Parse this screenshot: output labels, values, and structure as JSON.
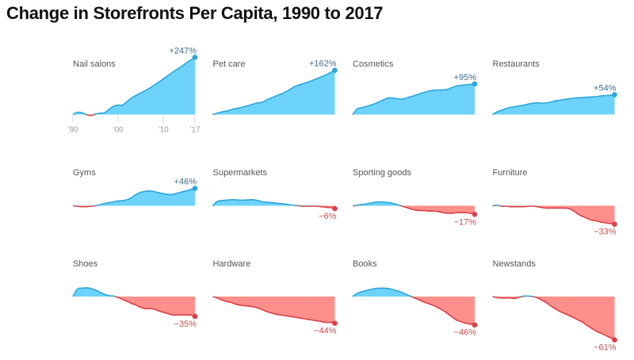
{
  "chart_data": {
    "type": "area",
    "layout": "small-multiples",
    "title": "Change in Storefronts Per Capita, 1990 to 2017",
    "xlabel": "",
    "ylabel": "",
    "y_scale": "log",
    "grid": false,
    "legend": "none",
    "years": [
      1990,
      1991,
      1992,
      1993,
      1994,
      1995,
      1996,
      1997,
      1998,
      1999,
      2000,
      2001,
      2002,
      2003,
      2004,
      2005,
      2006,
      2007,
      2008,
      2009,
      2010,
      2011,
      2012,
      2013,
      2014,
      2015,
      2016,
      2017
    ],
    "x_ticks": [
      {
        "year": 1990,
        "label": "’90"
      },
      {
        "year": 2000,
        "label": "’00"
      },
      {
        "year": 2010,
        "label": "’10"
      },
      {
        "year": 2017,
        "label": "’17"
      }
    ],
    "colors": {
      "positive_fill": "#6dd3fb",
      "positive_line": "#2ba6d9",
      "negative_fill": "#ff8f8a",
      "negative_line": "#d8414a",
      "positive_text": "#3e6e8e",
      "negative_text": "#c4504f",
      "tick": "#d6d6d6"
    },
    "panels": [
      {
        "label": "Nail salons",
        "change_pct": 247,
        "change_label": "+247%",
        "values": [
          0,
          5,
          4,
          0,
          -2,
          1,
          3,
          4,
          12,
          20,
          23,
          23,
          33,
          44,
          52,
          60,
          68,
          78,
          90,
          103,
          117,
          133,
          150,
          167,
          185,
          205,
          226,
          247
        ]
      },
      {
        "label": "Pet care",
        "change_pct": 162,
        "change_label": "+162%",
        "values": [
          0,
          3,
          6,
          8,
          11,
          14,
          16,
          19,
          22,
          26,
          29,
          31,
          38,
          44,
          50,
          56,
          63,
          72,
          83,
          90,
          96,
          102,
          110,
          118,
          127,
          137,
          149,
          162
        ]
      },
      {
        "label": "Cosmetics",
        "change_pct": 95,
        "change_label": "+95%",
        "values": [
          0,
          13,
          16,
          19,
          23,
          27,
          33,
          39,
          44,
          43,
          41,
          40,
          44,
          48,
          53,
          58,
          63,
          67,
          70,
          71,
          71,
          73,
          80,
          86,
          89,
          91,
          93,
          95
        ]
      },
      {
        "label": "Restaurants",
        "change_pct": 54,
        "change_label": "+54%",
        "values": [
          0,
          6,
          10,
          14,
          17,
          19,
          21,
          23,
          26,
          28,
          29,
          28,
          29,
          32,
          35,
          37,
          39,
          41,
          43,
          44,
          45,
          46,
          47,
          48,
          50,
          51,
          52,
          54
        ]
      },
      {
        "label": "Gyms",
        "change_pct": 46,
        "change_label": "+46%",
        "values": [
          0,
          -1,
          -2,
          -2,
          -1,
          0,
          2,
          5,
          7,
          9,
          11,
          12,
          14,
          20,
          28,
          34,
          37,
          38,
          36,
          33,
          30,
          28,
          28,
          31,
          35,
          38,
          42,
          46
        ]
      },
      {
        "label": "Supermarkets",
        "change_pct": -6,
        "change_label": "−6%",
        "values": [
          0,
          10,
          12,
          13,
          14,
          14,
          13,
          13,
          14,
          14,
          12,
          9,
          8,
          7,
          6,
          5,
          4,
          2,
          1,
          0,
          -1,
          -1,
          -1,
          -1,
          -2,
          -3,
          -4,
          -6
        ]
      },
      {
        "label": "Sporting goods",
        "change_pct": -17,
        "change_label": "−17%",
        "values": [
          0,
          1,
          3,
          4,
          6,
          8,
          9,
          8,
          7,
          5,
          2,
          -1,
          -4,
          -7,
          -9,
          -10,
          -10,
          -11,
          -11,
          -12,
          -14,
          -15,
          -15,
          -14,
          -14,
          -14,
          -15,
          -17
        ]
      },
      {
        "label": "Furniture",
        "change_pct": -33,
        "change_label": "−33%",
        "values": [
          0,
          1,
          -1,
          -1,
          -2,
          -2,
          -2,
          -2,
          -1,
          -1,
          -2,
          -4,
          -5,
          -5,
          -5,
          -5,
          -5,
          -6,
          -11,
          -17,
          -21,
          -24,
          -27,
          -28,
          -30,
          -31,
          -32,
          -33
        ]
      },
      {
        "label": "Shoes",
        "change_pct": -35,
        "change_label": "−35%",
        "values": [
          0,
          18,
          20,
          21,
          19,
          15,
          10,
          5,
          2,
          1,
          -2,
          -6,
          -10,
          -14,
          -17,
          -21,
          -23,
          -23,
          -24,
          -27,
          -29,
          -31,
          -33,
          -33,
          -33,
          -33,
          -33,
          -35
        ]
      },
      {
        "label": "Hardware",
        "change_pct": -44,
        "change_label": "−44%",
        "values": [
          0,
          -3,
          -7,
          -10,
          -12,
          -15,
          -17,
          -18,
          -19,
          -20,
          -22,
          -25,
          -28,
          -30,
          -32,
          -33,
          -34,
          -35,
          -36,
          -37,
          -38,
          -39,
          -40,
          -41,
          -42,
          -43,
          -43,
          -44
        ]
      },
      {
        "label": "Books",
        "change_pct": -46,
        "change_label": "−46%",
        "values": [
          0,
          7,
          11,
          14,
          17,
          19,
          20,
          20,
          19,
          16,
          13,
          9,
          4,
          0,
          -4,
          -8,
          -12,
          -15,
          -18,
          -22,
          -26,
          -31,
          -36,
          -40,
          -42,
          -44,
          -45,
          -46
        ]
      },
      {
        "label": "Newstands",
        "change_pct": -61,
        "change_label": "−61%",
        "values": [
          0,
          -2,
          -3,
          -3,
          -3,
          -4,
          -1,
          1,
          1,
          0,
          -3,
          -8,
          -13,
          -19,
          -24,
          -28,
          -31,
          -34,
          -37,
          -40,
          -43,
          -47,
          -50,
          -53,
          -55,
          -57,
          -59,
          -61
        ]
      }
    ]
  }
}
